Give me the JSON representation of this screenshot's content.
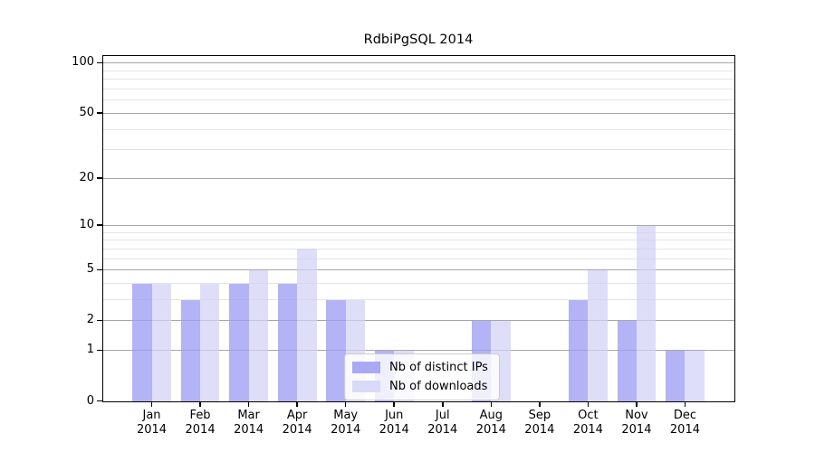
{
  "chart_data": {
    "type": "bar",
    "title": "RdbiPgSQL 2014",
    "categories": [
      "Jan 2014",
      "Feb 2014",
      "Mar 2014",
      "Apr 2014",
      "May 2014",
      "Jun 2014",
      "Jul 2014",
      "Aug 2014",
      "Sep 2014",
      "Oct 2014",
      "Nov 2014",
      "Dec 2014"
    ],
    "series": [
      {
        "name": "Nb of distinct IPs",
        "color": "#a9a9f5",
        "values": [
          4,
          3,
          4,
          4,
          3,
          1,
          0,
          2,
          0,
          3,
          2,
          1
        ]
      },
      {
        "name": "Nb of downloads",
        "color": "#d9d9f8",
        "values": [
          4,
          4,
          5,
          7,
          3,
          1,
          0,
          2,
          0,
          5,
          10,
          1
        ]
      }
    ],
    "xlabel": "",
    "ylabel": "",
    "y_scale": "log(1+x)",
    "y_ticks": [
      0,
      1,
      2,
      5,
      10,
      20,
      50,
      100
    ],
    "y_minor_gridlines": [
      3,
      4,
      6,
      7,
      8,
      9,
      30,
      40,
      60,
      70,
      80,
      90
    ],
    "ylim": [
      0,
      110
    ],
    "grid": "on",
    "legend_position": "lower center inside plot"
  }
}
